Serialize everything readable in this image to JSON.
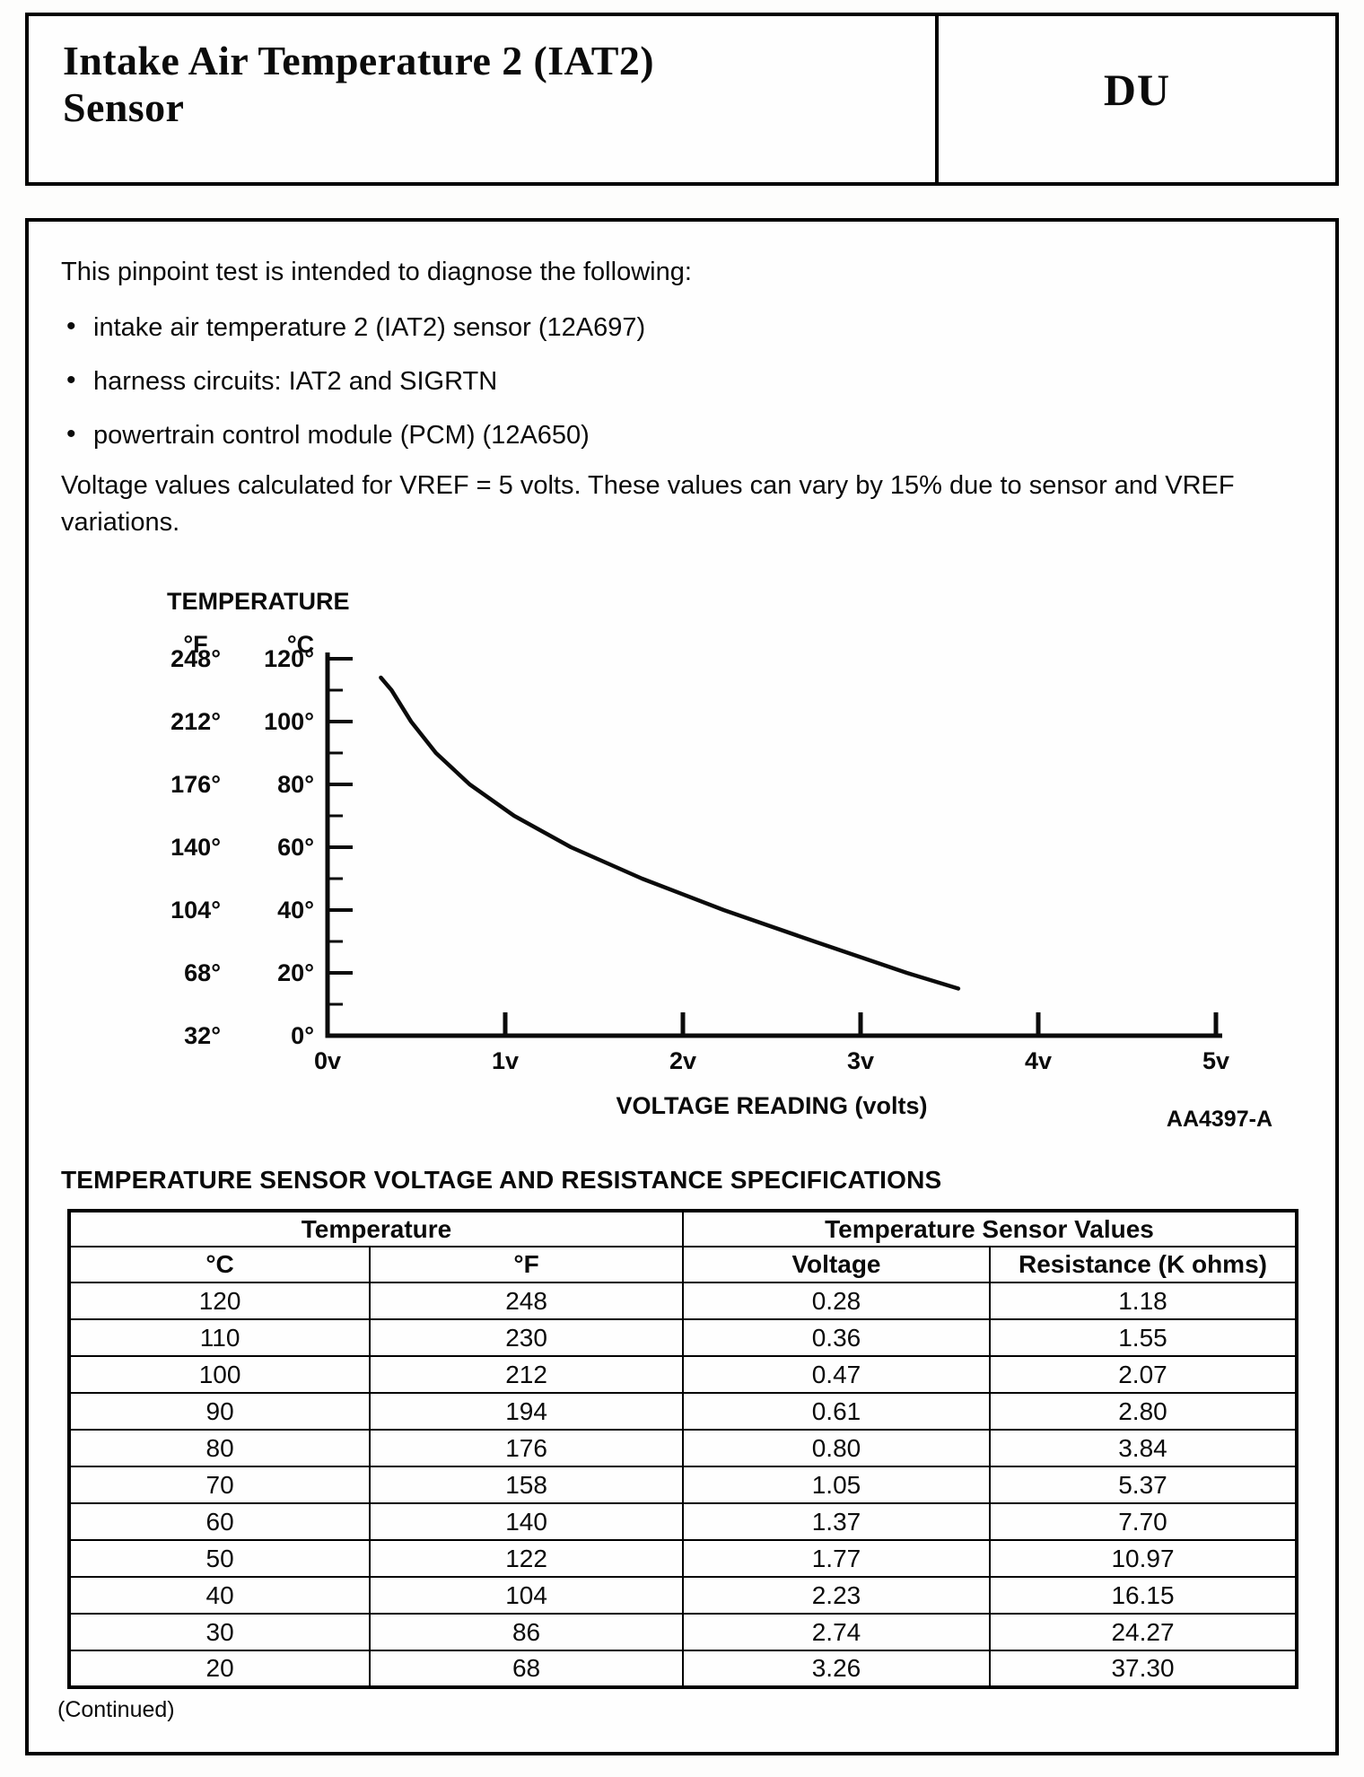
{
  "header": {
    "title_line1": "Intake Air Temperature 2 (IAT2)",
    "title_line2": "Sensor",
    "code": "DU"
  },
  "bullet_glyph": "•",
  "intro": "This pinpoint test is intended to diagnose the following:",
  "bullets": [
    "intake air temperature 2 (IAT2) sensor (12A697)",
    "harness circuits: IAT2 and SIGRTN",
    "powertrain control module (PCM) (12A650)"
  ],
  "note": "Voltage values calculated for VREF = 5 volts. These values can vary by 15% due to sensor and VREF variations.",
  "chart_data": {
    "type": "line",
    "title": "TEMPERATURE",
    "xlabel": "VOLTAGE READING (volts)",
    "figure_code": "AA4397-A",
    "y_axis_units": [
      "°F",
      "°C"
    ],
    "x_ticks": [
      "0v",
      "1v",
      "2v",
      "3v",
      "4v",
      "5v"
    ],
    "y_ticks_f": [
      "248°",
      "212°",
      "176°",
      "140°",
      "104°",
      "68°",
      "32°"
    ],
    "y_ticks_c": [
      "120°",
      "100°",
      "80°",
      "60°",
      "40°",
      "20°",
      "0°"
    ],
    "xlim": [
      0,
      5
    ],
    "ylim_c": [
      0,
      120
    ],
    "grid": false,
    "legend": false,
    "points": [
      [
        0.3,
        114
      ],
      [
        0.36,
        110
      ],
      [
        0.47,
        100
      ],
      [
        0.61,
        90
      ],
      [
        0.8,
        80
      ],
      [
        1.05,
        70
      ],
      [
        1.37,
        60
      ],
      [
        1.77,
        50
      ],
      [
        2.23,
        40
      ],
      [
        2.74,
        30
      ],
      [
        3.26,
        20
      ],
      [
        3.55,
        15
      ]
    ]
  },
  "table": {
    "heading": "TEMPERATURE SENSOR VOLTAGE AND RESISTANCE SPECIFICATIONS",
    "group_headers": [
      "Temperature",
      "Temperature Sensor Values"
    ],
    "col_headers": [
      "°C",
      "°F",
      "Voltage",
      "Resistance (K ohms)"
    ],
    "rows": [
      [
        "120",
        "248",
        "0.28",
        "1.18"
      ],
      [
        "110",
        "230",
        "0.36",
        "1.55"
      ],
      [
        "100",
        "212",
        "0.47",
        "2.07"
      ],
      [
        "90",
        "194",
        "0.61",
        "2.80"
      ],
      [
        "80",
        "176",
        "0.80",
        "3.84"
      ],
      [
        "70",
        "158",
        "1.05",
        "5.37"
      ],
      [
        "60",
        "140",
        "1.37",
        "7.70"
      ],
      [
        "50",
        "122",
        "1.77",
        "10.97"
      ],
      [
        "40",
        "104",
        "2.23",
        "16.15"
      ],
      [
        "30",
        "86",
        "2.74",
        "24.27"
      ],
      [
        "20",
        "68",
        "3.26",
        "37.30"
      ]
    ]
  },
  "continued": "(Continued)"
}
